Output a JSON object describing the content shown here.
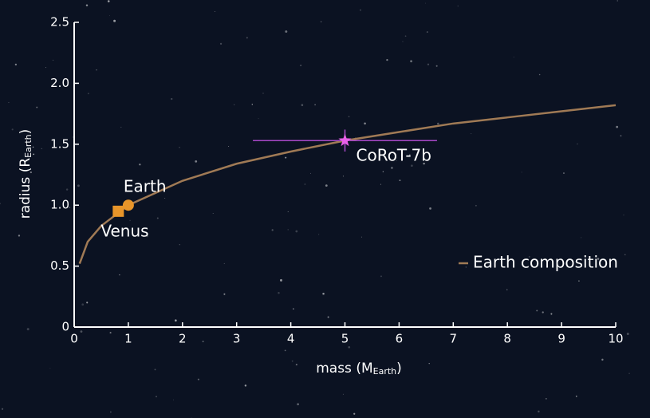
{
  "chart_data": {
    "type": "line",
    "x_label": [
      "mass (M",
      "Earth",
      ")"
    ],
    "y_label": [
      "radius (R",
      "Earth",
      ")"
    ],
    "xlim": [
      0,
      10
    ],
    "xticks": [
      0,
      1,
      2,
      3,
      4,
      5,
      6,
      7,
      8,
      9,
      10
    ],
    "ylim": [
      0,
      2.5
    ],
    "yticks": [
      0,
      0.5,
      {
        "value": 1,
        "label": "1.0"
      },
      1.5,
      {
        "value": 2,
        "label": "2.0"
      },
      2.5
    ],
    "series": [
      {
        "name": "Earth composition",
        "color": "#a07a55",
        "x": [
          0.1,
          0.25,
          0.5,
          1,
          2,
          3,
          4,
          5,
          6,
          7,
          8,
          9,
          10
        ],
        "values": [
          0.52,
          0.7,
          0.83,
          1.0,
          1.2,
          1.34,
          1.44,
          1.53,
          1.6,
          1.67,
          1.72,
          1.77,
          1.82
        ]
      }
    ],
    "planets": [
      {
        "name": "Earth",
        "x": 1,
        "y": 1,
        "marker": "circle",
        "color": "#e8952a"
      },
      {
        "name": "Venus",
        "x": 0.815,
        "y": 0.95,
        "marker": "square",
        "color": "#e8952a"
      },
      {
        "name": "CoRoT-7b",
        "x": 5.0,
        "y": 1.53,
        "x_err": 1.7,
        "y_err": 0.09,
        "marker": "star",
        "color": "#e860e8",
        "err_color": "#a848c8"
      }
    ],
    "legend": "lower right"
  }
}
